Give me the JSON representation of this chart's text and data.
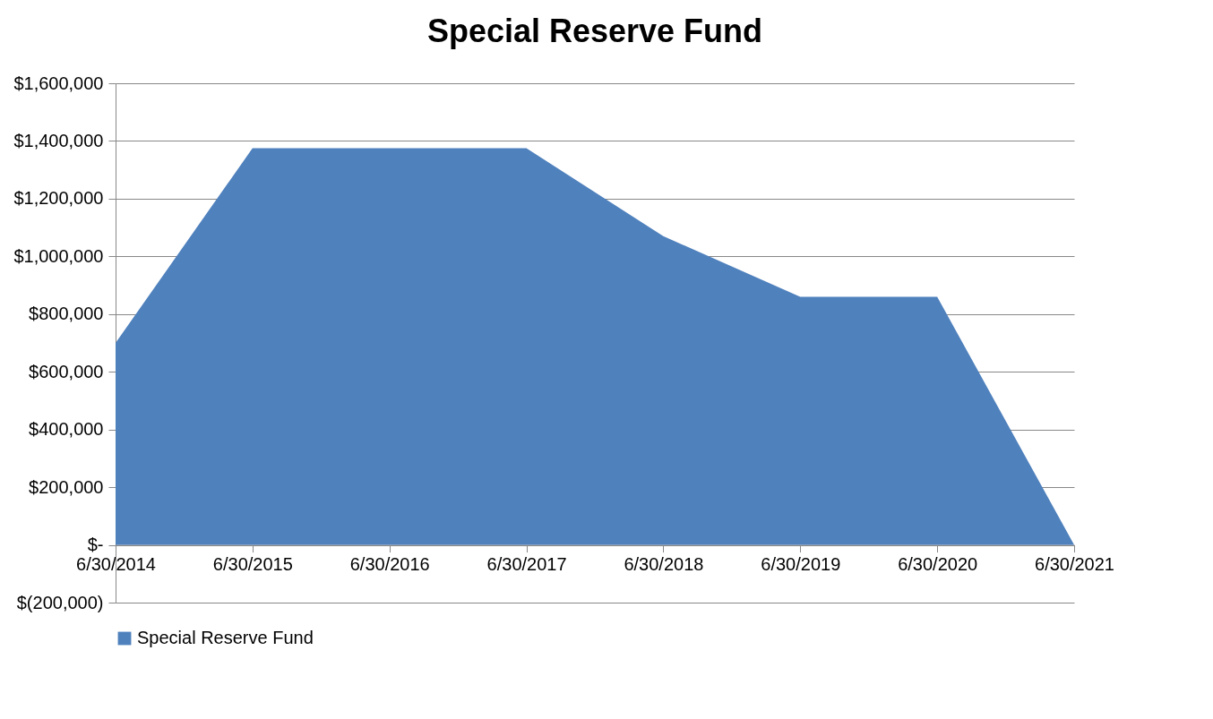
{
  "chart_data": {
    "type": "area",
    "title": "Special Reserve Fund",
    "categories": [
      "6/30/2014",
      "6/30/2015",
      "6/30/2016",
      "6/30/2017",
      "6/30/2018",
      "6/30/2019",
      "6/30/2020",
      "6/30/2021"
    ],
    "series": [
      {
        "name": "Special Reserve Fund",
        "color": "#4f81bd",
        "values": [
          700000,
          1375000,
          1375000,
          1375000,
          1070000,
          860000,
          860000,
          0
        ]
      }
    ],
    "ylim": [
      -200000,
      1600000
    ],
    "yticks": [
      {
        "value": -200000,
        "label": "$(200,000)"
      },
      {
        "value": 0,
        "label": "$-"
      },
      {
        "value": 200000,
        "label": "$200,000"
      },
      {
        "value": 400000,
        "label": "$400,000"
      },
      {
        "value": 600000,
        "label": "$600,000"
      },
      {
        "value": 800000,
        "label": "$800,000"
      },
      {
        "value": 1000000,
        "label": "$1,000,000"
      },
      {
        "value": 1200000,
        "label": "$1,200,000"
      },
      {
        "value": 1400000,
        "label": "$1,400,000"
      },
      {
        "value": 1600000,
        "label": "$1,600,000"
      }
    ],
    "grid": "y",
    "legend": "bottom"
  }
}
